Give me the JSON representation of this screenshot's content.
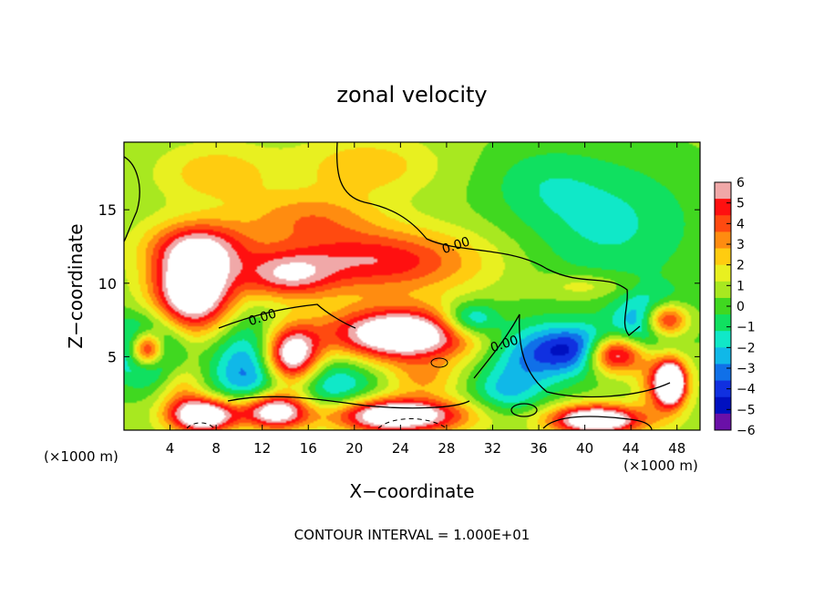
{
  "chart_data": {
    "type": "heatmap",
    "title": "zonal velocity",
    "xlabel": "X−coordinate",
    "ylabel": "Z−coordinate",
    "x_unit_left": "(×1000 m)",
    "x_unit_right": "(×1000 m)",
    "footer": "CONTOUR INTERVAL = 1.000E+01",
    "xlim": [
      0,
      50
    ],
    "ylim": [
      0,
      19.6
    ],
    "x_ticks": [
      4,
      8,
      12,
      16,
      20,
      24,
      28,
      32,
      36,
      40,
      44,
      48
    ],
    "y_ticks": [
      5,
      10,
      15
    ],
    "contour_labels": [
      {
        "text": "0.00",
        "x": 28.8,
        "y": 12.6
      },
      {
        "text": "0.00",
        "x": 12.0,
        "y": 7.7
      },
      {
        "text": "0.00",
        "x": 33.0,
        "y": 5.9
      }
    ],
    "colorbar": {
      "ticks": [
        "6",
        "5",
        "4",
        "3",
        "2",
        "1",
        "0",
        "−1",
        "−2",
        "−3",
        "−4",
        "−5",
        "−6"
      ],
      "min": -6,
      "max": 6,
      "colors": [
        "#f0a8a8",
        "#ff1010",
        "#ff4a10",
        "#ff8c10",
        "#ffcc10",
        "#e8f020",
        "#a8e820",
        "#40d820",
        "#10e060",
        "#10e8c8",
        "#10b8e8",
        "#1070e8",
        "#1030e0",
        "#0010c0",
        "#6a10a8"
      ]
    },
    "field_blobs": [
      {
        "x": 6,
        "y": 9.5,
        "rx": 3.5,
        "ry": 2.8,
        "v": 8
      },
      {
        "x": 6.5,
        "y": 12.5,
        "rx": 4.5,
        "ry": 1.8,
        "v": 4
      },
      {
        "x": 22,
        "y": 11.5,
        "rx": 9,
        "ry": 2.2,
        "v": 4.5
      },
      {
        "x": 14,
        "y": 10.5,
        "rx": 4,
        "ry": 1.6,
        "v": 4
      },
      {
        "x": 24,
        "y": 6.5,
        "rx": 6.5,
        "ry": 1.8,
        "v": 8
      },
      {
        "x": 2,
        "y": 5.5,
        "rx": 3,
        "ry": 2.2,
        "v": -5
      },
      {
        "x": 2,
        "y": 5.5,
        "rx": 1.5,
        "ry": 1.2,
        "v": 8
      },
      {
        "x": 14.5,
        "y": 5,
        "rx": 2.5,
        "ry": 2,
        "v": 8
      },
      {
        "x": 11,
        "y": 4,
        "rx": 3.5,
        "ry": 3.5,
        "v": -4
      },
      {
        "x": 40,
        "y": 5.5,
        "rx": 4,
        "ry": 1.6,
        "v": -5
      },
      {
        "x": 42.5,
        "y": 5.2,
        "rx": 2.5,
        "ry": 1.3,
        "v": 8
      },
      {
        "x": 47,
        "y": 7.5,
        "rx": 2,
        "ry": 1.2,
        "v": 8
      },
      {
        "x": 46,
        "y": 7.5,
        "rx": 3,
        "ry": 1.8,
        "v": -5
      },
      {
        "x": 47,
        "y": 3.2,
        "rx": 2,
        "ry": 2,
        "v": 5
      },
      {
        "x": 47.5,
        "y": 3.2,
        "rx": 1,
        "ry": 1.2,
        "v": 8
      },
      {
        "x": 30,
        "y": 7.5,
        "rx": 2.5,
        "ry": 1.2,
        "v": -4
      },
      {
        "x": 35,
        "y": 5,
        "rx": 4,
        "ry": 2.5,
        "v": -3
      },
      {
        "x": 7,
        "y": 1,
        "rx": 3,
        "ry": 1.2,
        "v": 8
      },
      {
        "x": 13,
        "y": 1.3,
        "rx": 3,
        "ry": 1.3,
        "v": 8
      },
      {
        "x": 23.5,
        "y": 1,
        "rx": 6,
        "ry": 1.2,
        "v": 8
      },
      {
        "x": 41,
        "y": 0.7,
        "rx": 4,
        "ry": 1,
        "v": 8
      },
      {
        "x": 18,
        "y": 3,
        "rx": 4,
        "ry": 2.5,
        "v": -3
      },
      {
        "x": 8,
        "y": 17.5,
        "rx": 5,
        "ry": 2,
        "v": 2
      },
      {
        "x": 21,
        "y": 18,
        "rx": 6,
        "ry": 2,
        "v": 2
      },
      {
        "x": 42,
        "y": 14,
        "rx": 8,
        "ry": 4.5,
        "v": -2
      },
      {
        "x": 36,
        "y": 17,
        "rx": 5,
        "ry": 2.5,
        "v": -1
      },
      {
        "x": 16,
        "y": 14.5,
        "rx": 6,
        "ry": 1.8,
        "v": 2.5
      },
      {
        "x": 40,
        "y": 9.8,
        "rx": 4,
        "ry": 0.9,
        "v": 1.5
      },
      {
        "x": 5,
        "y": 3,
        "rx": 2,
        "ry": 2,
        "v": 2
      },
      {
        "x": 33,
        "y": 2.5,
        "rx": 3,
        "ry": 1.5,
        "v": -2
      },
      {
        "x": 26,
        "y": 3.5,
        "rx": 3,
        "ry": 1.2,
        "v": 2
      }
    ],
    "background_value": 0.6
  }
}
